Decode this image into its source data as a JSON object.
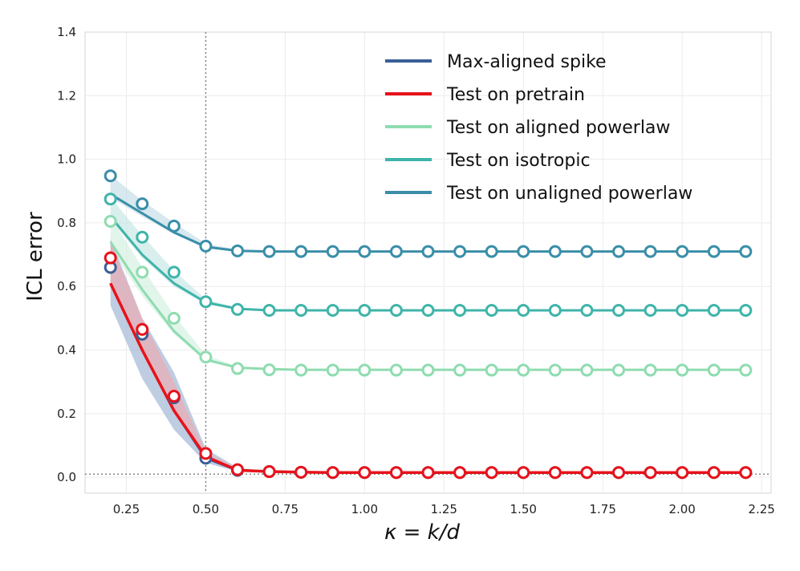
{
  "chart_data": {
    "type": "line",
    "xlabel": "κ = k/d",
    "ylabel": "ICL error",
    "xlim": [
      0.12,
      2.28
    ],
    "ylim": [
      -0.05,
      1.4
    ],
    "xticks": [
      "0.25",
      "0.50",
      "0.75",
      "1.00",
      "1.25",
      "1.50",
      "1.75",
      "2.00",
      "2.25"
    ],
    "yticks": [
      "0.0",
      "0.2",
      "0.4",
      "0.6",
      "0.8",
      "1.0",
      "1.2",
      "1.4"
    ],
    "grid": true,
    "vline": 0.5,
    "hline": 0.01,
    "legend_position": "top-right",
    "x": [
      0.2,
      0.3,
      0.4,
      0.5,
      0.6,
      0.7,
      0.8,
      0.9,
      1.0,
      1.1,
      1.2,
      1.3,
      1.4,
      1.5,
      1.6,
      1.7,
      1.8,
      1.9,
      2.0,
      2.1,
      2.2
    ],
    "series": [
      {
        "name": "Max-aligned spike",
        "color": "#3a5f96",
        "band_color": "#a9bcd8",
        "line": [
          0.61,
          0.4,
          0.21,
          0.06,
          0.022,
          0.018,
          0.016,
          0.015,
          0.015,
          0.015,
          0.015,
          0.015,
          0.015,
          0.015,
          0.015,
          0.015,
          0.015,
          0.015,
          0.015,
          0.015,
          0.015
        ],
        "band_low": [
          0.54,
          0.31,
          0.15,
          0.045,
          0.018,
          0.016,
          0.015,
          0.014,
          0.014,
          0.014,
          0.014,
          0.014,
          0.014,
          0.014,
          0.014,
          0.014,
          0.014,
          0.014,
          0.014,
          0.014,
          0.014
        ],
        "band_high": [
          0.75,
          0.5,
          0.33,
          0.09,
          0.03,
          0.02,
          0.018,
          0.017,
          0.017,
          0.017,
          0.017,
          0.017,
          0.017,
          0.017,
          0.017,
          0.017,
          0.017,
          0.017,
          0.017,
          0.017,
          0.017
        ],
        "markers": [
          0.66,
          0.45,
          0.25,
          0.06,
          0.022,
          0.018,
          0.016,
          0.015,
          0.015,
          0.015,
          0.015,
          0.015,
          0.015,
          0.015,
          0.015,
          0.015,
          0.015,
          0.015,
          0.015,
          0.015,
          0.015
        ]
      },
      {
        "name": "Test on pretrain",
        "color": "#e8121a",
        "band_color": "#f3a7ab",
        "line": [
          0.61,
          0.4,
          0.21,
          0.065,
          0.022,
          0.018,
          0.016,
          0.015,
          0.015,
          0.015,
          0.015,
          0.015,
          0.015,
          0.015,
          0.015,
          0.015,
          0.015,
          0.015,
          0.015,
          0.015,
          0.015
        ],
        "band_low": [
          0.6,
          0.39,
          0.2,
          0.06,
          0.02,
          0.017,
          0.015,
          0.014,
          0.014,
          0.014,
          0.014,
          0.014,
          0.014,
          0.014,
          0.014,
          0.014,
          0.014,
          0.014,
          0.014,
          0.014,
          0.014
        ],
        "band_high": [
          0.74,
          0.5,
          0.3,
          0.08,
          0.028,
          0.02,
          0.018,
          0.017,
          0.017,
          0.017,
          0.017,
          0.017,
          0.017,
          0.017,
          0.017,
          0.017,
          0.017,
          0.017,
          0.017,
          0.017,
          0.017
        ],
        "markers": [
          0.69,
          0.465,
          0.255,
          0.075,
          0.024,
          0.018,
          0.016,
          0.015,
          0.015,
          0.015,
          0.015,
          0.015,
          0.015,
          0.015,
          0.015,
          0.015,
          0.015,
          0.015,
          0.015,
          0.015,
          0.015
        ]
      },
      {
        "name": "Test on aligned powerlaw",
        "color": "#8fdcb0",
        "band_color": "#cfeedd",
        "line": [
          0.74,
          0.59,
          0.46,
          0.37,
          0.345,
          0.34,
          0.338,
          0.338,
          0.338,
          0.338,
          0.338,
          0.338,
          0.338,
          0.338,
          0.338,
          0.338,
          0.338,
          0.338,
          0.338,
          0.338,
          0.338
        ],
        "band_low": [
          0.72,
          0.57,
          0.45,
          0.365,
          0.342,
          0.338,
          0.336,
          0.336,
          0.336,
          0.336,
          0.336,
          0.336,
          0.336,
          0.336,
          0.336,
          0.336,
          0.336,
          0.336,
          0.336,
          0.336,
          0.336
        ],
        "band_high": [
          0.82,
          0.66,
          0.51,
          0.385,
          0.348,
          0.342,
          0.34,
          0.34,
          0.34,
          0.34,
          0.34,
          0.34,
          0.34,
          0.34,
          0.34,
          0.34,
          0.34,
          0.34,
          0.34,
          0.34,
          0.34
        ],
        "markers": [
          0.805,
          0.645,
          0.5,
          0.378,
          0.342,
          0.338,
          0.337,
          0.337,
          0.337,
          0.337,
          0.337,
          0.337,
          0.337,
          0.337,
          0.337,
          0.337,
          0.337,
          0.337,
          0.337,
          0.337,
          0.337
        ]
      },
      {
        "name": "Test on isotropic",
        "color": "#3fb4aa",
        "band_color": "#bfe5e1",
        "line": [
          0.82,
          0.7,
          0.61,
          0.55,
          0.53,
          0.525,
          0.525,
          0.525,
          0.525,
          0.525,
          0.525,
          0.525,
          0.525,
          0.525,
          0.525,
          0.525,
          0.525,
          0.525,
          0.525,
          0.525,
          0.525
        ],
        "band_low": [
          0.81,
          0.69,
          0.6,
          0.545,
          0.527,
          0.523,
          0.523,
          0.523,
          0.523,
          0.523,
          0.523,
          0.523,
          0.523,
          0.523,
          0.523,
          0.523,
          0.523,
          0.523,
          0.523,
          0.523,
          0.523
        ],
        "band_high": [
          0.88,
          0.76,
          0.65,
          0.56,
          0.533,
          0.528,
          0.527,
          0.527,
          0.527,
          0.527,
          0.527,
          0.527,
          0.527,
          0.527,
          0.527,
          0.527,
          0.527,
          0.527,
          0.527,
          0.527,
          0.527
        ],
        "markers": [
          0.875,
          0.755,
          0.645,
          0.552,
          0.528,
          0.525,
          0.525,
          0.525,
          0.525,
          0.525,
          0.525,
          0.525,
          0.525,
          0.525,
          0.525,
          0.525,
          0.525,
          0.525,
          0.525,
          0.525,
          0.525
        ]
      },
      {
        "name": "Test on unaligned powerlaw",
        "color": "#3a8ea8",
        "band_color": "#bdd8e4",
        "line": [
          0.89,
          0.83,
          0.77,
          0.725,
          0.712,
          0.71,
          0.71,
          0.71,
          0.71,
          0.71,
          0.71,
          0.71,
          0.71,
          0.71,
          0.71,
          0.71,
          0.71,
          0.71,
          0.71,
          0.71,
          0.71
        ],
        "band_low": [
          0.88,
          0.82,
          0.765,
          0.72,
          0.71,
          0.708,
          0.708,
          0.708,
          0.708,
          0.708,
          0.708,
          0.708,
          0.708,
          0.708,
          0.708,
          0.708,
          0.708,
          0.708,
          0.708,
          0.708,
          0.708
        ],
        "band_high": [
          0.95,
          0.87,
          0.8,
          0.735,
          0.716,
          0.713,
          0.712,
          0.712,
          0.712,
          0.712,
          0.712,
          0.712,
          0.712,
          0.712,
          0.712,
          0.712,
          0.712,
          0.712,
          0.712,
          0.712,
          0.712
        ],
        "markers": [
          0.948,
          0.86,
          0.79,
          0.727,
          0.712,
          0.71,
          0.71,
          0.71,
          0.71,
          0.71,
          0.71,
          0.71,
          0.71,
          0.71,
          0.71,
          0.71,
          0.71,
          0.71,
          0.71,
          0.71,
          0.71
        ]
      }
    ]
  }
}
